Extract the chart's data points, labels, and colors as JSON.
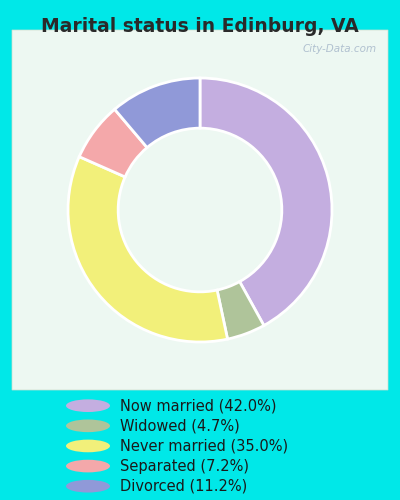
{
  "title": "Marital status in Edinburg, VA",
  "slices": [
    42.0,
    4.7,
    35.0,
    7.2,
    11.2
  ],
  "labels": [
    "Now married (42.0%)",
    "Widowed (4.7%)",
    "Never married (35.0%)",
    "Separated (7.2%)",
    "Divorced (11.2%)"
  ],
  "colors": [
    "#c4aee0",
    "#afc49a",
    "#f2f07a",
    "#f4a8aa",
    "#9099d8"
  ],
  "bg_outer": "#00e8e8",
  "bg_chart": "#e8f5ee",
  "title_color": "#2a2a2a",
  "title_fontsize": 13.5,
  "legend_fontsize": 10.5,
  "watermark": "City-Data.com",
  "donut_width": 0.38
}
